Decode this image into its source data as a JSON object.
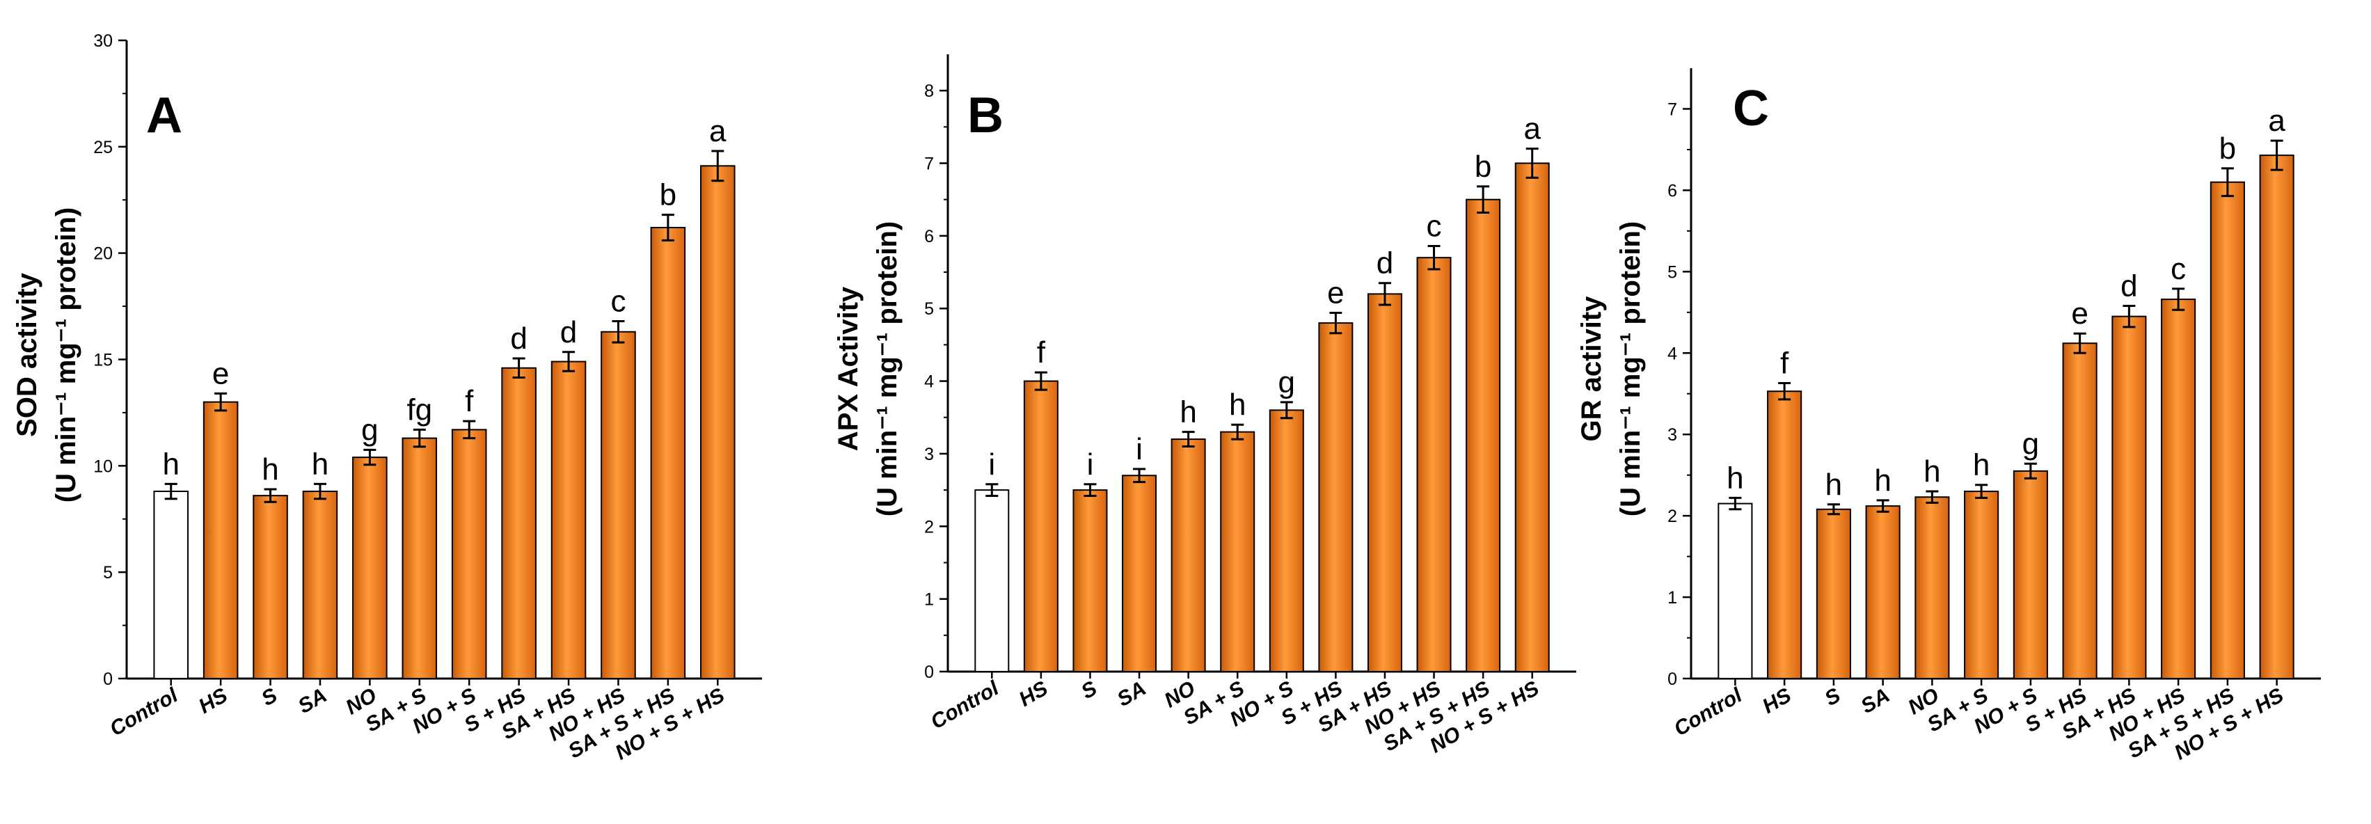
{
  "colors": {
    "control_fill": "#ffffff",
    "treatment_fill": "#e8741c",
    "treatment_highlight": "#ffb060",
    "bar_stroke": "#000000"
  },
  "chart_data": [
    {
      "type": "bar",
      "panel": "A",
      "ylabel_line1": "SOD activity",
      "ylabel_line2": "(U min⁻¹ mg⁻¹ protein)",
      "ylim": [
        0,
        30
      ],
      "yticks": [
        0,
        5,
        10,
        15,
        20,
        25,
        30
      ],
      "categories": [
        "Control",
        "HS",
        "S",
        "SA",
        "NO",
        "SA + S",
        "NO + S",
        "S + HS",
        "SA + HS",
        "NO + HS",
        "SA + S + HS",
        "NO + S + HS"
      ],
      "values": [
        8.8,
        13.0,
        8.6,
        8.8,
        10.4,
        11.3,
        11.7,
        14.6,
        14.9,
        16.3,
        21.2,
        24.1
      ],
      "errors": [
        0.35,
        0.4,
        0.3,
        0.35,
        0.35,
        0.4,
        0.4,
        0.45,
        0.45,
        0.5,
        0.6,
        0.7
      ],
      "letters": [
        "h",
        "e",
        "h",
        "h",
        "g",
        "fg",
        "f",
        "d",
        "d",
        "c",
        "b",
        "a"
      ]
    },
    {
      "type": "bar",
      "panel": "B",
      "ylabel_line1": "APX Activity",
      "ylabel_line2": "(U min⁻¹ mg⁻¹ protein)",
      "ylim": [
        0,
        8.5
      ],
      "yticks": [
        0,
        1,
        2,
        3,
        4,
        5,
        6,
        7,
        8
      ],
      "categories": [
        "Control",
        "HS",
        "S",
        "SA",
        "NO",
        "SA + S",
        "NO + S",
        "S + HS",
        "SA + HS",
        "NO + HS",
        "SA + S + HS",
        "NO + S + HS"
      ],
      "values": [
        2.5,
        4.0,
        2.5,
        2.7,
        3.2,
        3.3,
        3.6,
        4.8,
        5.2,
        5.7,
        6.5,
        7.0
      ],
      "errors": [
        0.08,
        0.12,
        0.08,
        0.09,
        0.1,
        0.1,
        0.11,
        0.14,
        0.15,
        0.16,
        0.18,
        0.2
      ],
      "letters": [
        "i",
        "f",
        "i",
        "i",
        "h",
        "h",
        "g",
        "e",
        "d",
        "c",
        "b",
        "a"
      ]
    },
    {
      "type": "bar",
      "panel": "C",
      "ylabel_line1": "GR activity",
      "ylabel_line2": "(U min⁻¹ mg⁻¹ protein)",
      "ylim": [
        0,
        7.5
      ],
      "yticks": [
        0,
        1,
        2,
        3,
        4,
        5,
        6,
        7
      ],
      "categories": [
        "Control",
        "HS",
        "S",
        "SA",
        "NO",
        "SA + S",
        "NO + S",
        "S + HS",
        "SA + HS",
        "NO + HS",
        "SA + S + HS",
        "NO + S + HS"
      ],
      "values": [
        2.15,
        3.53,
        2.08,
        2.12,
        2.23,
        2.3,
        2.55,
        4.12,
        4.45,
        4.66,
        6.1,
        6.43
      ],
      "errors": [
        0.07,
        0.1,
        0.06,
        0.07,
        0.07,
        0.08,
        0.09,
        0.12,
        0.13,
        0.13,
        0.17,
        0.18
      ],
      "letters": [
        "h",
        "f",
        "h",
        "h",
        "h",
        "h",
        "g",
        "e",
        "d",
        "c",
        "b",
        "a"
      ]
    }
  ]
}
